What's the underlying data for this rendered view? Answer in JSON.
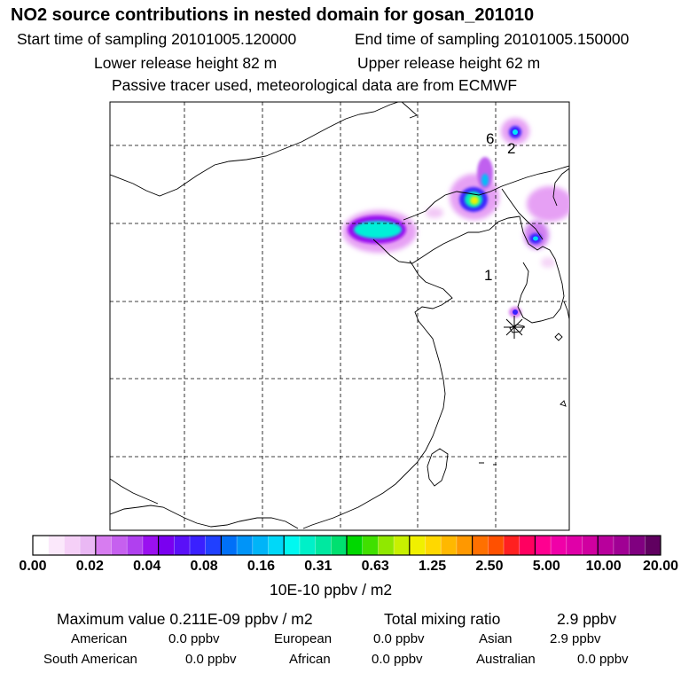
{
  "header": {
    "title": "NO2 source contributions in nested domain for gosan_201010",
    "start_label": "Start time of sampling 20101005.120000",
    "end_label": "End time of sampling 20101005.150000",
    "lower_label": "Lower release height   82 m",
    "upper_label": "Upper release height   62 m",
    "passive_label": "Passive tracer used, meteorological data are from ECMWF"
  },
  "map": {
    "markers": [
      {
        "label": "6"
      },
      {
        "label": "2"
      },
      {
        "label": "1"
      }
    ],
    "receptor": "star-marker"
  },
  "colorbar": {
    "unit_label": "10E-10 ppbv / m2",
    "ticks": [
      "0.00",
      "0.02",
      "0.04",
      "0.08",
      "0.16",
      "0.31",
      "0.63",
      "1.25",
      "2.50",
      "5.00",
      "10.00",
      "20.00"
    ],
    "colors": [
      "#ffffff",
      "#fbe8fb",
      "#f5d0f7",
      "#eab8f4",
      "#d77cf0",
      "#c660ef",
      "#b040ef",
      "#9a10f0",
      "#7a00f0",
      "#5a10f8",
      "#3a20ff",
      "#2040ff",
      "#0070f8",
      "#0094f8",
      "#00b4f8",
      "#00d8f8",
      "#00f8f0",
      "#00f0c8",
      "#00e8a0",
      "#00e070",
      "#00d800",
      "#40e000",
      "#90e800",
      "#c8f000",
      "#f0f000",
      "#ffd800",
      "#ffb800",
      "#ff9800",
      "#ff7000",
      "#ff5000",
      "#ff2020",
      "#ff0060",
      "#ff0090",
      "#f000a8",
      "#e000a8",
      "#d000a0",
      "#b8009c",
      "#a00094",
      "#800080",
      "#600060"
    ]
  },
  "stats": {
    "max_label": "Maximum value  0.211E-09 ppbv / m2",
    "total_label": "Total mixing ratio",
    "total_value": "2.9 ppbv",
    "american_label": "American",
    "american_value": "0.0 ppbv",
    "european_label": "European",
    "european_value": "0.0 ppbv",
    "asian_label": "Asian",
    "asian_value": "2.9 ppbv",
    "south_american_label": "South American",
    "south_american_value": "0.0 ppbv",
    "african_label": "African",
    "african_value": "0.0 ppbv",
    "australian_label": "Australian",
    "australian_value": "0.0 ppbv"
  }
}
